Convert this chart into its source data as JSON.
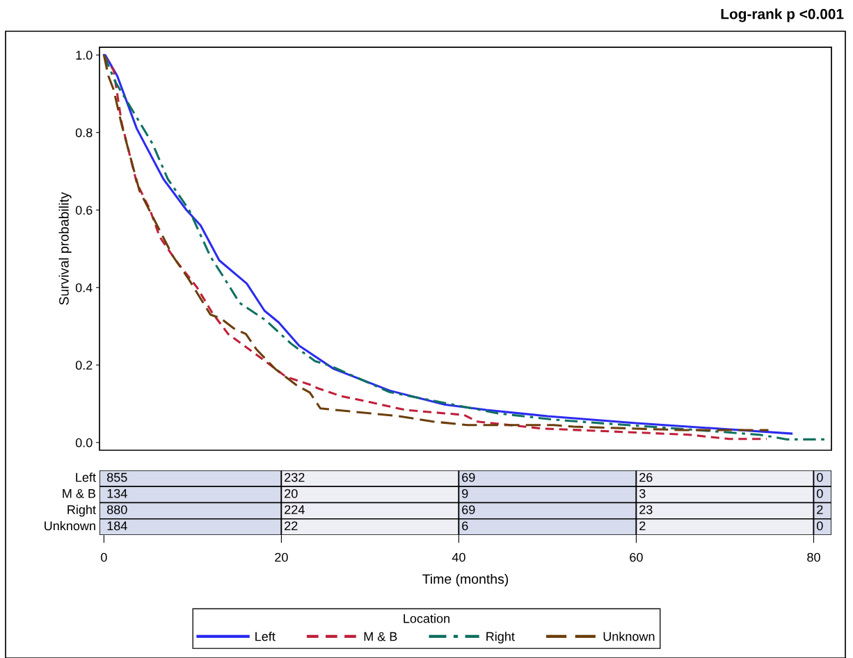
{
  "chart_data": [
    {
      "type": "line",
      "ylabel": "Survival probability",
      "xlabel": "Time (months)",
      "legend_title": "Location",
      "legend": "bottom",
      "grid": false,
      "annotations": [
        "Log-rank p <0.001"
      ],
      "xlim": [
        -0.5,
        82
      ],
      "xticks": [
        0,
        20,
        40,
        60,
        80
      ],
      "ylim": [
        -0.02,
        1.02
      ],
      "yticks": [
        {
          "value": 0,
          "label": "0.0"
        },
        {
          "value": 0.2,
          "label": "0.2"
        },
        {
          "value": 0.4,
          "label": "0.4"
        },
        {
          "value": 0.6,
          "label": "0.6"
        },
        {
          "value": 0.8,
          "label": "0.8"
        },
        {
          "value": 1,
          "label": "1.0"
        }
      ],
      "series": [
        {
          "name": "Left",
          "color": "#2b2bf0",
          "line_style": "solid",
          "x": [
            0,
            0.15,
            1.5,
            3.7,
            6.7,
            9.3,
            10.9,
            13.0,
            16.1,
            18.1,
            19.7,
            22,
            25.9,
            32.2,
            38.4,
            43.1,
            50,
            60,
            77.5
          ],
          "values": [
            1.0,
            1.0,
            0.946,
            0.81,
            0.68,
            0.6,
            0.56,
            0.47,
            0.41,
            0.34,
            0.31,
            0.25,
            0.19,
            0.134,
            0.098,
            0.084,
            0.068,
            0.05,
            0.023
          ]
        },
        {
          "name": "M & B",
          "color": "#c0203a",
          "line_style": "dashed",
          "x": [
            0,
            1.1,
            2,
            3.7,
            5.2,
            6.3,
            8.1,
            10.5,
            12.2,
            14,
            17,
            20.5,
            23.4,
            24.1,
            26.7,
            30,
            34,
            40.6,
            42.1,
            49.4,
            66,
            70.5,
            74.7
          ],
          "values": [
            1.0,
            0.96,
            0.825,
            0.67,
            0.6,
            0.53,
            0.47,
            0.4,
            0.335,
            0.28,
            0.23,
            0.17,
            0.148,
            0.14,
            0.12,
            0.104,
            0.084,
            0.071,
            0.054,
            0.036,
            0.02,
            0.009,
            0.009
          ]
        },
        {
          "name": "Right",
          "color": "#0e7060",
          "line_style": "dashdot",
          "x": [
            0,
            1.3,
            3.4,
            5.5,
            7.2,
            9.6,
            12,
            13.4,
            15.3,
            18.2,
            21.1,
            23.8,
            25.5,
            32.2,
            38.4,
            44.5,
            50.7,
            54.7,
            65.8,
            73.9,
            77,
            81.4
          ],
          "values": [
            1.0,
            0.93,
            0.85,
            0.77,
            0.68,
            0.6,
            0.48,
            0.43,
            0.36,
            0.316,
            0.255,
            0.21,
            0.198,
            0.13,
            0.102,
            0.075,
            0.059,
            0.052,
            0.034,
            0.02,
            0.008,
            0.008
          ]
        },
        {
          "name": "Unknown",
          "color": "#6b3e0b",
          "line_style": "longdash",
          "x": [
            0,
            0.5,
            1.1,
            2,
            4,
            6,
            7.8,
            9.6,
            12,
            13.2,
            14.6,
            16,
            17.2,
            19.3,
            21.7,
            23.2,
            24.4,
            33.2,
            37.1,
            41,
            50.7,
            52.9,
            65.2,
            74.9
          ],
          "values": [
            1.0,
            0.946,
            0.91,
            0.82,
            0.65,
            0.56,
            0.48,
            0.42,
            0.33,
            0.32,
            0.295,
            0.28,
            0.24,
            0.19,
            0.148,
            0.129,
            0.088,
            0.068,
            0.054,
            0.045,
            0.045,
            0.041,
            0.032,
            0.032
          ]
        }
      ]
    },
    {
      "type": "other",
      "colors": [
        "#d6dced",
        "#eeeef5"
      ],
      "y_categories": [
        "Left",
        "M & B",
        "Right",
        "Unknown"
      ],
      "cell_labels": [
        [
          "855",
          "232",
          "69",
          "26",
          "0"
        ],
        [
          "134",
          "20",
          "9",
          "3",
          "0"
        ],
        [
          "880",
          "224",
          "69",
          "23",
          "2"
        ],
        [
          "184",
          "22",
          "6",
          "2",
          "0"
        ]
      ]
    }
  ]
}
